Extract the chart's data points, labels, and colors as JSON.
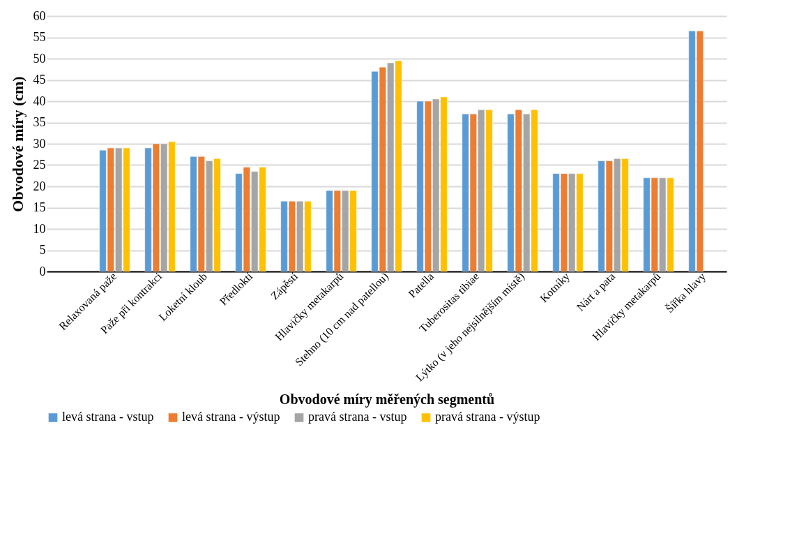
{
  "chart_data": {
    "type": "bar",
    "xlabel": "Obvodové míry měřených segmentů",
    "ylabel": "Obvodové míry (cm)",
    "categories": [
      null,
      "Relaxovaná paže",
      "Paže při kontrakci",
      "Loketní kloub",
      "Předloktí",
      "Zápěstí",
      "Hlavičky metakarpů",
      "Stehno (10 cm nad patellou)",
      "Patella",
      "Tuberositas tibiae",
      "Lýtko (v jeho nejsilnějším místě)",
      "Kotníky",
      "Nárt a pata",
      "Hlavičky metakarpů",
      "Šířka hlavy"
    ],
    "series": [
      {
        "name": "levá strana - vstup",
        "color": "#5b9bd5",
        "values": [
          null,
          28.5,
          29,
          27,
          23,
          16.5,
          19,
          47,
          40,
          37,
          37,
          23,
          26,
          22,
          56.5
        ]
      },
      {
        "name": "levá strana - výstup",
        "color": "#ed7d31",
        "values": [
          null,
          29,
          30,
          27,
          24.5,
          16.5,
          19,
          48,
          40,
          37,
          38,
          23,
          26,
          22,
          56.5
        ]
      },
      {
        "name": "pravá strana - vstup",
        "color": "#a5a5a5",
        "values": [
          null,
          29,
          30,
          26,
          23.5,
          16.5,
          19,
          49,
          40.5,
          38,
          37,
          23,
          26.5,
          22,
          null
        ]
      },
      {
        "name": "pravá strana - výstup",
        "color": "#ffc000",
        "values": [
          null,
          29,
          30.5,
          26.5,
          24.5,
          16.5,
          19,
          49.5,
          41,
          38,
          38,
          23,
          26.5,
          22,
          null
        ]
      }
    ],
    "ylim": [
      0,
      60
    ],
    "yticks": [
      0,
      5,
      10,
      15,
      20,
      25,
      30,
      35,
      40,
      45,
      50,
      55,
      60
    ],
    "grid": "y",
    "legend": "bottom"
  }
}
